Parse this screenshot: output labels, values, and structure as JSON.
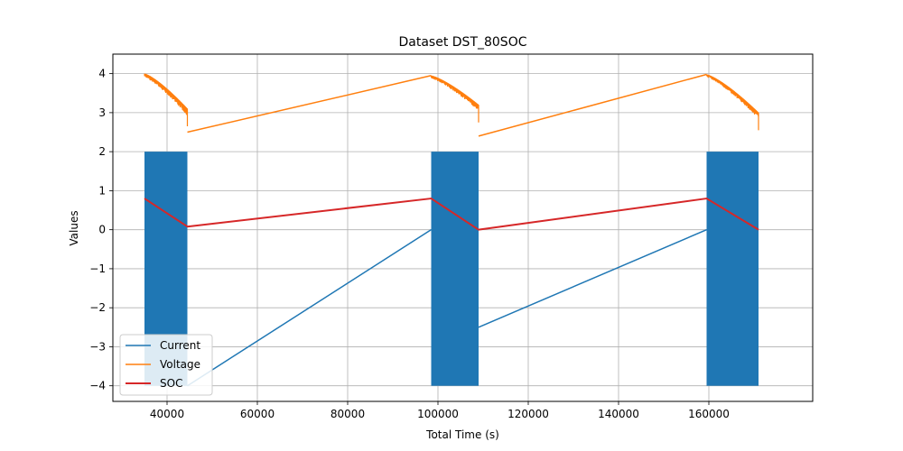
{
  "chart_data": {
    "type": "line",
    "title": "Dataset DST_80SOC",
    "xlabel": "Total Time (s)",
    "ylabel": "Values",
    "xlim": [
      28000,
      183000
    ],
    "ylim": [
      -4.4,
      4.5
    ],
    "xticks": [
      40000,
      60000,
      80000,
      100000,
      120000,
      140000,
      160000
    ],
    "yticks": [
      -4,
      -3,
      -2,
      -1,
      0,
      1,
      2,
      3,
      4
    ],
    "xtick_labels": [
      "40000",
      "60000",
      "80000",
      "100000",
      "120000",
      "140000",
      "160000"
    ],
    "ytick_labels": [
      "−4",
      "−3",
      "−2",
      "−1",
      "0",
      "1",
      "2",
      "3",
      "4"
    ],
    "grid": true,
    "legend_position": "lower-left",
    "series": [
      {
        "name": "Current",
        "color": "#1f77b4",
        "lineWidth": 1.5,
        "dense_blocks": [
          {
            "x_start": 35000,
            "x_end": 44500,
            "y_low": -4,
            "y_high": 2
          },
          {
            "x_start": 98500,
            "x_end": 109000,
            "y_low": -4,
            "y_high": 2
          },
          {
            "x_start": 159500,
            "x_end": 171000,
            "y_low": -4,
            "y_high": 2
          }
        ],
        "points": [
          [
            44500,
            -4
          ],
          [
            98500,
            0
          ],
          [
            109000,
            -2.5
          ],
          [
            159500,
            0
          ]
        ]
      },
      {
        "name": "Voltage",
        "color": "#ff7f0e",
        "lineWidth": 1.5,
        "noisy_segments": [
          {
            "x_start": 35000,
            "x_end": 44500,
            "y_start": 4.0,
            "y_end": 3.1,
            "noise": 0.18
          },
          {
            "x_start": 98500,
            "x_end": 109000,
            "y_start": 3.95,
            "y_end": 3.2,
            "noise": 0.15
          },
          {
            "x_start": 159500,
            "x_end": 171000,
            "y_start": 3.98,
            "y_end": 3.0,
            "noise": 0.15
          }
        ],
        "points": [
          [
            44500,
            2.5
          ],
          [
            98500,
            3.95
          ],
          [
            109000,
            2.4
          ],
          [
            159500,
            3.98
          ]
        ]
      },
      {
        "name": "SOC",
        "color": "#d62728",
        "lineWidth": 2,
        "points": [
          [
            35000,
            0.8
          ],
          [
            44500,
            0.08
          ],
          [
            98500,
            0.8
          ],
          [
            109000,
            0.0
          ],
          [
            159500,
            0.8
          ],
          [
            171000,
            0.0
          ]
        ]
      }
    ]
  }
}
